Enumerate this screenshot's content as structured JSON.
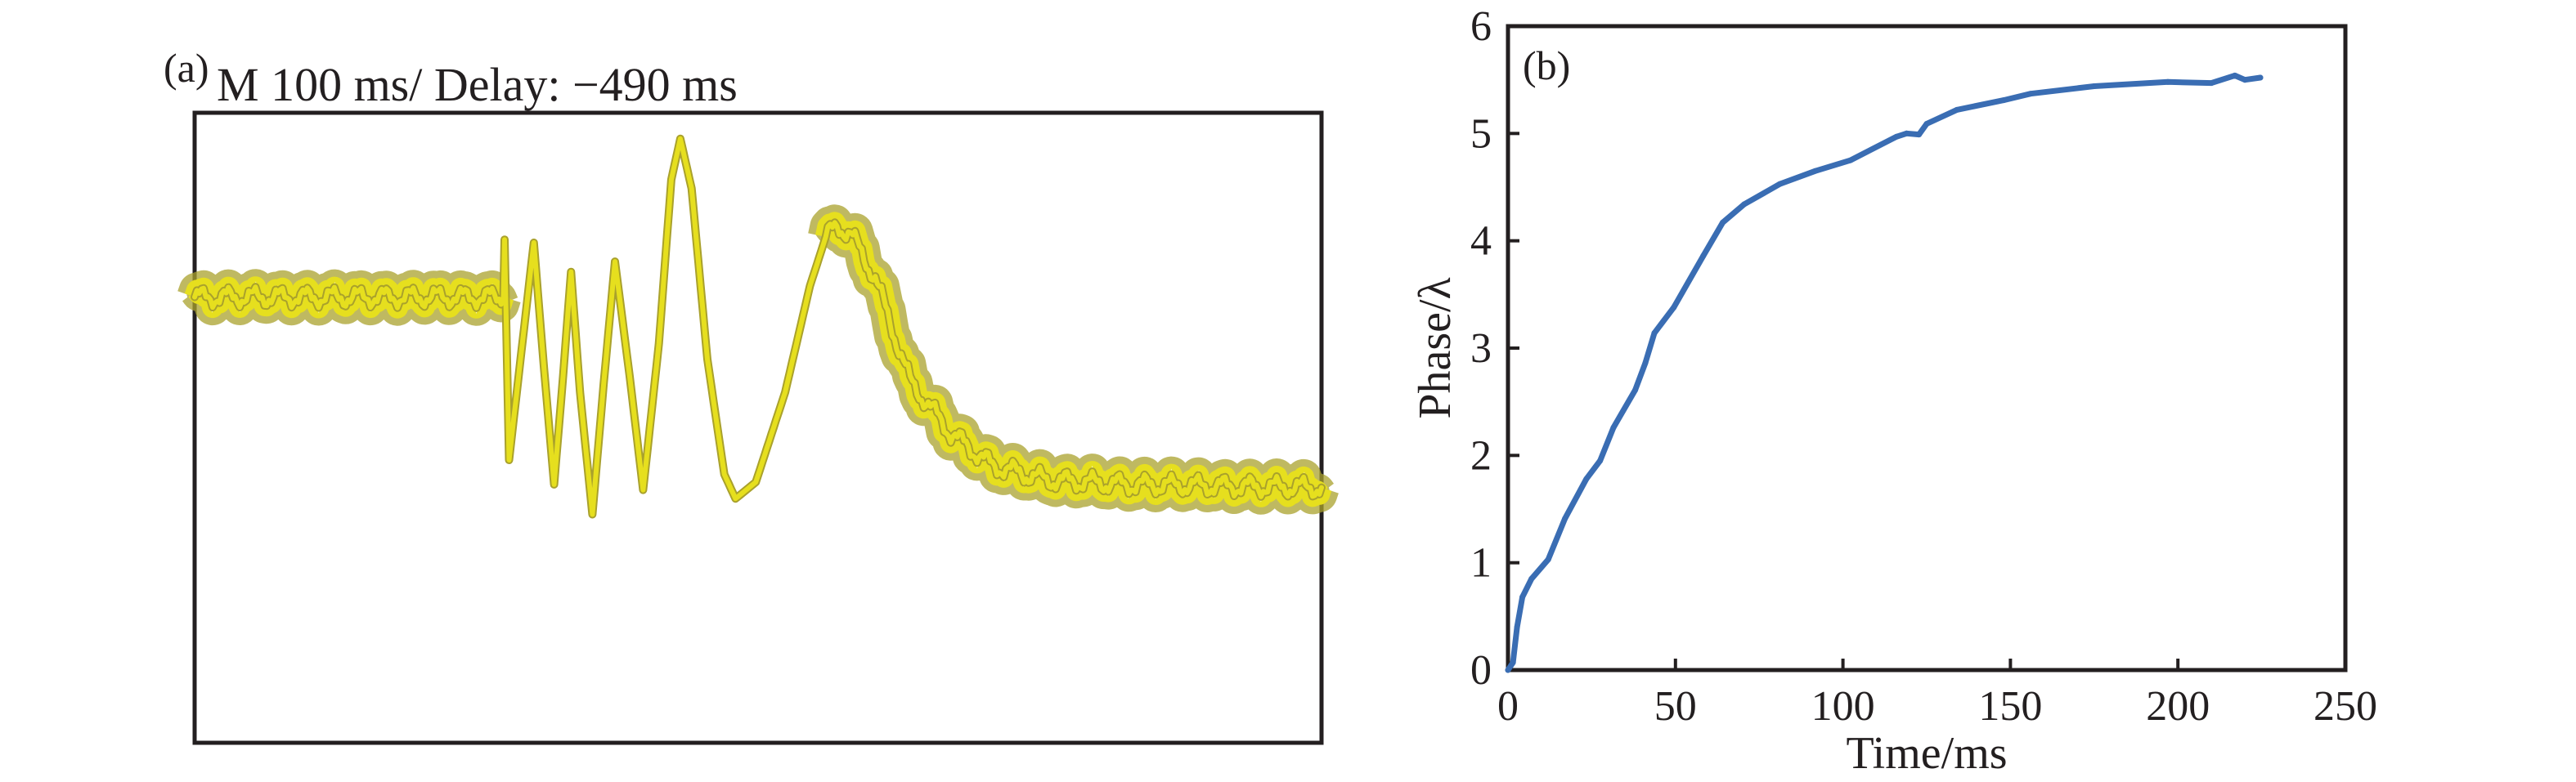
{
  "chart_data": [
    {
      "panel": "(a)",
      "type": "line",
      "title": "M 100 ms/ Delay: −490 ms",
      "xlabel": "",
      "ylabel": "",
      "x_unit": "div",
      "y_unit": "div",
      "xlim": [
        0,
        10
      ],
      "ylim": [
        -4,
        4
      ],
      "grid": false,
      "legend": "none",
      "trace_color": "#e6df1e",
      "trace_edge_color": "#a9a12c",
      "trace_core_color": "#f8f6b0",
      "series": [
        {
          "name": "oscilloscope trace",
          "x": [
            0,
            2.74,
            2.75,
            2.79,
            2.9,
            3.01,
            3.1,
            3.19,
            3.27,
            3.34,
            3.42,
            3.53,
            3.63,
            3.73,
            3.86,
            3.98,
            4.12,
            4.23,
            4.31,
            4.41,
            4.55,
            4.7,
            4.8,
            4.98,
            5.24,
            5.46,
            5.6,
            5.7,
            5.82,
            6.04,
            6.15,
            6.35,
            6.71,
            7.08,
            7.56,
            8.29,
            10.0
          ],
          "y": [
            1.66,
            1.66,
            2.39,
            -0.41,
            0.97,
            2.35,
            0.76,
            -0.72,
            0.66,
            1.98,
            0.45,
            -1.1,
            0.56,
            2.11,
            0.66,
            -0.79,
            1.07,
            3.15,
            3.67,
            3.04,
            0.87,
            -0.59,
            -0.9,
            -0.69,
            0.45,
            1.8,
            2.42,
            2.56,
            2.47,
            1.9,
            1.43,
            0.59,
            -0.07,
            -0.48,
            -0.66,
            -0.72,
            -0.76
          ],
          "noisy_ranges": [
            [
              0,
              2.74
            ],
            [
              5.6,
              10.0
            ]
          ],
          "noise_amplitude": 0.12
        }
      ]
    },
    {
      "panel": "(b)",
      "type": "line",
      "title": "",
      "xlabel": "Time/ms",
      "ylabel": "Phase/λ",
      "xlim": [
        0,
        250
      ],
      "ylim": [
        0,
        6
      ],
      "xticks": [
        0,
        50,
        100,
        150,
        200,
        250
      ],
      "yticks": [
        0,
        1,
        2,
        3,
        4,
        5,
        6
      ],
      "xtick_labels": [
        "0",
        "50",
        "100",
        "150",
        "200",
        "250"
      ],
      "ytick_labels": [
        "0",
        "1",
        "2",
        "3",
        "4",
        "5",
        "6"
      ],
      "grid": false,
      "legend": "none",
      "line_color": "#3a6db3",
      "series": [
        {
          "name": "Phase",
          "x": [
            0,
            1.5,
            2.7,
            4.3,
            7,
            12,
            17,
            23.4,
            27.5,
            31.5,
            38,
            41,
            43.7,
            49.5,
            58.3,
            64.1,
            70.5,
            81.2,
            91.7,
            102.2,
            116,
            119,
            122.7,
            125,
            134,
            148,
            156,
            175,
            197,
            210,
            217,
            220,
            224.6
          ],
          "y": [
            0,
            0.07,
            0.4,
            0.68,
            0.85,
            1.03,
            1.41,
            1.78,
            1.95,
            2.26,
            2.61,
            2.86,
            3.14,
            3.38,
            3.86,
            4.17,
            4.34,
            4.53,
            4.65,
            4.75,
            4.97,
            5.0,
            4.99,
            5.09,
            5.22,
            5.31,
            5.37,
            5.44,
            5.48,
            5.47,
            5.54,
            5.5,
            5.52
          ]
        }
      ]
    }
  ]
}
